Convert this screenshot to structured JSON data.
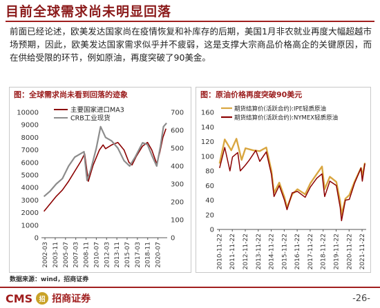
{
  "slide": {
    "title": "目前全球需求尚未明显回落",
    "paragraph": "前面已经论述，欧美发达国家尚在疫情恢复和补库存的后期，美国1月非农就业再度大幅超越市场预期，因此，欧美发达国家需求似乎并不疲弱，这是支撑大宗商品价格高企的关键原因，而在供给受限的环节，例如原油，再度突破了90美金。",
    "source": "数据来源：wind，招商证券",
    "logo_text": "CMS",
    "logo_mark": "招",
    "logo_cn": "招商证券",
    "page_number": "-26-"
  },
  "colors": {
    "brand_red": "#a01e1e",
    "series_red": "#8b0000",
    "series_gray": "#8c8c8c",
    "series_gold": "#d9a640"
  },
  "chart_data": [
    {
      "type": "line",
      "title": "图：全球需求尚未看到回落的迹象",
      "legend_position": "top-left",
      "x_ticks": [
        "2002-03",
        "2003-11",
        "2005-07",
        "2007-03",
        "2008-11",
        "2010-07",
        "2012-03",
        "2013-11",
        "2015-07",
        "2017-03",
        "2018-11",
        "2020-07"
      ],
      "left_axis": {
        "ylim": [
          0,
          10000
        ],
        "ticks": [
          0,
          1000,
          2000,
          3000,
          4000,
          5000,
          6000,
          7000,
          8000,
          9000,
          10000
        ]
      },
      "right_axis": {
        "ylim": [
          0,
          700
        ],
        "ticks": [
          0,
          100,
          200,
          300,
          400,
          500,
          600,
          700
        ]
      },
      "series": [
        {
          "name": "主要国家进口MA3",
          "axis": "left",
          "color": "#8b0000",
          "points": [
            [
              2002.0,
              2100
            ],
            [
              2003.0,
              2700
            ],
            [
              2004.0,
              3300
            ],
            [
              2005.0,
              3800
            ],
            [
              2006.0,
              4500
            ],
            [
              2007.0,
              5300
            ],
            [
              2008.0,
              6100
            ],
            [
              2008.6,
              6700
            ],
            [
              2009.2,
              4500
            ],
            [
              2010.0,
              5800
            ],
            [
              2011.0,
              7000
            ],
            [
              2011.6,
              7400
            ],
            [
              2012.0,
              7100
            ],
            [
              2013.0,
              7400
            ],
            [
              2014.0,
              7600
            ],
            [
              2015.0,
              7000
            ],
            [
              2015.8,
              6000
            ],
            [
              2016.3,
              5800
            ],
            [
              2017.0,
              6500
            ],
            [
              2018.0,
              7300
            ],
            [
              2018.8,
              7600
            ],
            [
              2019.5,
              7000
            ],
            [
              2020.3,
              5900
            ],
            [
              2020.8,
              6800
            ],
            [
              2021.3,
              8000
            ],
            [
              2021.8,
              8700
            ]
          ]
        },
        {
          "name": "CRB工业现货",
          "axis": "right",
          "color": "#8c8c8c",
          "points": [
            [
              2002.0,
              230
            ],
            [
              2003.0,
              260
            ],
            [
              2004.0,
              300
            ],
            [
              2005.0,
              330
            ],
            [
              2006.0,
              400
            ],
            [
              2007.0,
              450
            ],
            [
              2008.0,
              470
            ],
            [
              2008.5,
              480
            ],
            [
              2009.0,
              320
            ],
            [
              2009.6,
              380
            ],
            [
              2010.5,
              500
            ],
            [
              2011.2,
              620
            ],
            [
              2012.0,
              560
            ],
            [
              2013.0,
              540
            ],
            [
              2014.0,
              500
            ],
            [
              2015.0,
              430
            ],
            [
              2015.9,
              400
            ],
            [
              2016.8,
              450
            ],
            [
              2018.0,
              530
            ],
            [
              2018.8,
              520
            ],
            [
              2019.5,
              460
            ],
            [
              2020.3,
              400
            ],
            [
              2020.9,
              510
            ],
            [
              2021.4,
              620
            ],
            [
              2021.9,
              640
            ]
          ]
        }
      ]
    },
    {
      "type": "line",
      "title": "图：原油价格再度突破90美元",
      "legend_position": "top-left",
      "x_ticks": [
        "2010-11-22",
        "2011-11-22",
        "2012-11-22",
        "2013-11-22",
        "2014-11-22",
        "2015-11-22",
        "2016-11-22",
        "2017-11-22",
        "2018-11-22",
        "2019-11-22",
        "2020-11-22",
        "2021-11-22"
      ],
      "ylim": [
        0,
        160
      ],
      "y_ticks": [
        0,
        20,
        40,
        60,
        80,
        100,
        120,
        140,
        160
      ],
      "series": [
        {
          "name": "期货结算价(活跃合约):IPE轻质原油",
          "color": "#d9a640",
          "points": [
            [
              2010.9,
              90
            ],
            [
              2011.3,
              123
            ],
            [
              2011.8,
              108
            ],
            [
              2012.2,
              124
            ],
            [
              2012.6,
              95
            ],
            [
              2012.9,
              111
            ],
            [
              2013.5,
              108
            ],
            [
              2014.0,
              107
            ],
            [
              2014.5,
              112
            ],
            [
              2014.9,
              80
            ],
            [
              2015.1,
              50
            ],
            [
              2015.5,
              64
            ],
            [
              2015.9,
              44
            ],
            [
              2016.1,
              30
            ],
            [
              2016.5,
              48
            ],
            [
              2016.9,
              55
            ],
            [
              2017.5,
              48
            ],
            [
              2017.9,
              63
            ],
            [
              2018.4,
              76
            ],
            [
              2018.8,
              86
            ],
            [
              2019.0,
              55
            ],
            [
              2019.4,
              72
            ],
            [
              2019.9,
              65
            ],
            [
              2020.2,
              38
            ],
            [
              2020.3,
              20
            ],
            [
              2020.6,
              42
            ],
            [
              2020.9,
              47
            ],
            [
              2021.3,
              65
            ],
            [
              2021.8,
              84
            ],
            [
              2021.9,
              73
            ],
            [
              2022.1,
              91
            ]
          ]
        },
        {
          "name": "期货结算价(活跃合约):NYMEX轻质原油",
          "color": "#8b0000",
          "points": [
            [
              2010.9,
              84
            ],
            [
              2011.3,
              112
            ],
            [
              2011.7,
              80
            ],
            [
              2011.9,
              99
            ],
            [
              2012.3,
              105
            ],
            [
              2012.5,
              80
            ],
            [
              2012.9,
              88
            ],
            [
              2013.2,
              95
            ],
            [
              2013.7,
              108
            ],
            [
              2014.0,
              93
            ],
            [
              2014.5,
              106
            ],
            [
              2014.9,
              75
            ],
            [
              2015.1,
              45
            ],
            [
              2015.5,
              60
            ],
            [
              2015.9,
              40
            ],
            [
              2016.1,
              27
            ],
            [
              2016.5,
              50
            ],
            [
              2016.9,
              52
            ],
            [
              2017.5,
              44
            ],
            [
              2017.9,
              58
            ],
            [
              2018.4,
              70
            ],
            [
              2018.8,
              76
            ],
            [
              2019.0,
              45
            ],
            [
              2019.4,
              66
            ],
            [
              2019.9,
              60
            ],
            [
              2020.2,
              30
            ],
            [
              2020.3,
              12
            ],
            [
              2020.6,
              40
            ],
            [
              2020.9,
              41
            ],
            [
              2021.3,
              63
            ],
            [
              2021.8,
              84
            ],
            [
              2021.9,
              66
            ],
            [
              2022.1,
              90
            ]
          ]
        }
      ]
    }
  ]
}
